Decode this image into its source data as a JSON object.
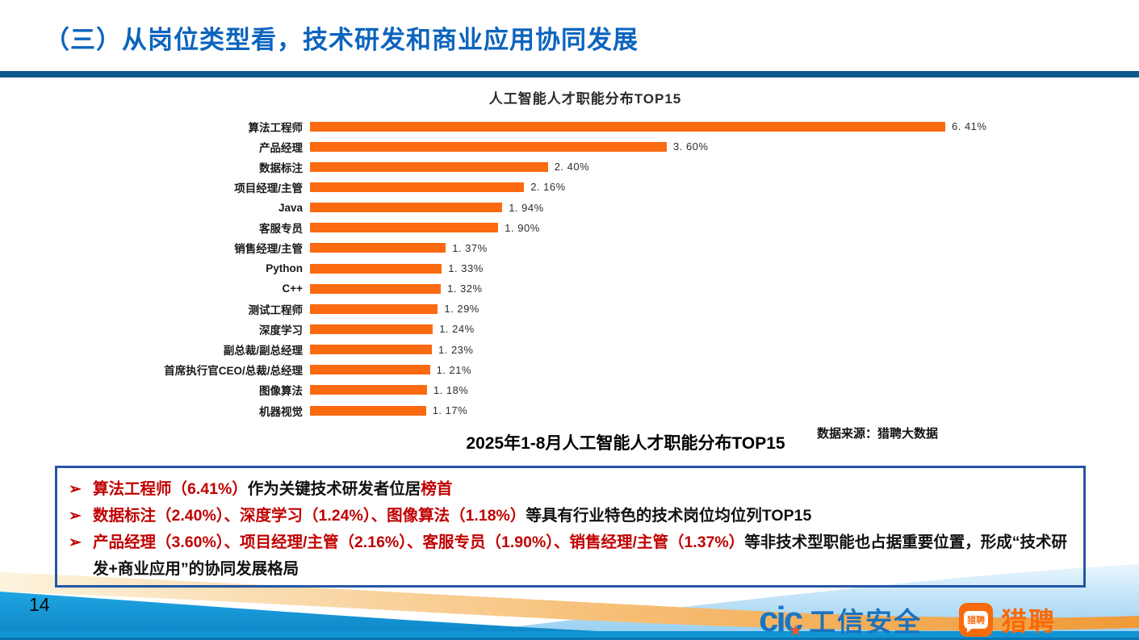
{
  "slide": {
    "title": "（三）从岗位类型看，技术研发和商业应用协同发展",
    "page_number": "14"
  },
  "chart_data": {
    "type": "bar",
    "orientation": "horizontal",
    "title": "人工智能人才职能分布TOP15",
    "categories": [
      "算法工程师",
      "产品经理",
      "数据标注",
      "项目经理/主管",
      "Java",
      "客服专员",
      "销售经理/主管",
      "Python",
      "C++",
      "测试工程师",
      "深度学习",
      "副总裁/副总经理",
      "首席执行官CEO/总裁/总经理",
      "图像算法",
      "机器视觉"
    ],
    "values": [
      6.41,
      3.6,
      2.4,
      2.16,
      1.94,
      1.9,
      1.37,
      1.33,
      1.32,
      1.29,
      1.24,
      1.23,
      1.21,
      1.18,
      1.17
    ],
    "value_labels": [
      "6. 41%",
      "3. 60%",
      "2. 40%",
      "2. 16%",
      "1. 94%",
      "1. 90%",
      "1. 37%",
      "1. 33%",
      "1. 32%",
      "1. 29%",
      "1. 24%",
      "1. 23%",
      "1. 21%",
      "1. 18%",
      "1. 17%"
    ],
    "xlabel": "",
    "ylabel": "",
    "xlim": [
      0,
      6.8
    ],
    "grid": false,
    "legend": "none",
    "bar_color": "#fb6a10"
  },
  "caption": "2025年1-8月人工智能人才职能分布TOP15",
  "source": "数据来源：猎聘大数据",
  "bullet_marker": "➢",
  "bullets": [
    {
      "segments": [
        {
          "text": "算法工程师（6.41%）",
          "style": "red"
        },
        {
          "text": "作为关键技术研发者位居",
          "style": "black"
        },
        {
          "text": "榜首",
          "style": "red"
        }
      ]
    },
    {
      "segments": [
        {
          "text": "数据标注（2.40%）、深度学习（1.24%）、图像算法（1.18%）",
          "style": "red"
        },
        {
          "text": "等具有行业特色的技术岗位均位列TOP15",
          "style": "black"
        }
      ]
    },
    {
      "segments": [
        {
          "text": "产品经理（3.60%）、项目经理/主管（2.16%）、客服专员（1.90%）、销售经理/主管（1.37%）",
          "style": "red"
        },
        {
          "text": "等非技术型职能也占据重要位置，形成“技术研发+商业应用”的协同发展格局",
          "style": "black"
        }
      ]
    }
  ],
  "footer": {
    "cic_mark": "cic",
    "cic_star": "★",
    "cic_label": "工信安全",
    "liepin_badge_text": "猎聘",
    "liepin_label": "猎聘"
  },
  "colors": {
    "title_blue": "#0d64be",
    "header_rule": "#0e5a8d",
    "bar_orange": "#fb6a10",
    "text_red": "#c00000",
    "box_border": "#2456a5",
    "footer_blue_bright": "#1fa6e2",
    "footer_blue_deep": "#0c82c3",
    "footer_tan_light": "#fdf3dd",
    "footer_tan_deep": "#f09a37",
    "liepin_orange": "#f86a0c",
    "cic_blue": "#1877c5"
  }
}
